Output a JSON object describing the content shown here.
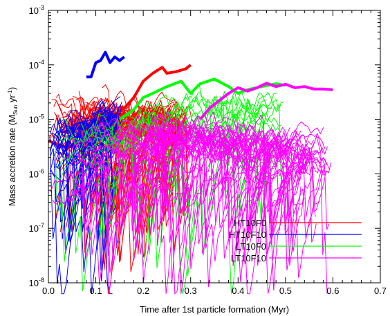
{
  "chart_data": {
    "type": "line",
    "xlabel": "Time after 1st particle formation (Myr)",
    "ylabel_main": "Mass accretion rate (M",
    "ylabel_sub": "Sun",
    "ylabel_mid": " yr",
    "ylabel_sup": "-1",
    "ylabel_end": ")",
    "xlim": [
      0.0,
      0.7
    ],
    "ylim": [
      1e-08,
      0.001
    ],
    "yscale": "log",
    "x_ticks": [
      {
        "v": 0.0,
        "label": "0.0"
      },
      {
        "v": 0.1,
        "label": "0.1"
      },
      {
        "v": 0.2,
        "label": "0.2"
      },
      {
        "v": 0.3,
        "label": "0.3"
      },
      {
        "v": 0.4,
        "label": "0.4"
      },
      {
        "v": 0.5,
        "label": "0.5"
      },
      {
        "v": 0.6,
        "label": "0.6"
      },
      {
        "v": 0.7,
        "label": "0.7"
      }
    ],
    "y_ticks": [
      {
        "exp": -8,
        "base": "10",
        "sup": "-8"
      },
      {
        "exp": -7,
        "base": "10",
        "sup": "-7"
      },
      {
        "exp": -6,
        "base": "10",
        "sup": "-6"
      },
      {
        "exp": -5,
        "base": "10",
        "sup": "-5"
      },
      {
        "exp": -4,
        "base": "10",
        "sup": "-4"
      },
      {
        "exp": -3,
        "base": "10",
        "sup": "-3"
      }
    ],
    "legend_placement": "bottom-right",
    "series": [
      {
        "name": "HT10F0",
        "color": "#ff0000",
        "x_range": [
          0.0,
          0.305
        ],
        "n_thin": 55,
        "seed": 11,
        "mean": [
          [
            0.0,
            1e-05
          ],
          [
            0.15,
            1e-05
          ],
          [
            0.3,
            1e-05
          ]
        ],
        "thick": [
          [
            0.0,
            4e-06
          ],
          [
            0.02,
            3.5e-06
          ],
          [
            0.04,
            3e-06
          ],
          [
            0.06,
            3.6e-06
          ],
          [
            0.08,
            4.5e-06
          ],
          [
            0.1,
            6e-06
          ],
          [
            0.12,
            8e-06
          ],
          [
            0.14,
            1.2e-05
          ],
          [
            0.16,
            1.6e-05
          ],
          [
            0.18,
            2.5e-05
          ],
          [
            0.2,
            5e-05
          ],
          [
            0.22,
            7e-05
          ],
          [
            0.24,
            9e-05
          ],
          [
            0.25,
            7e-05
          ],
          [
            0.27,
            7.5e-05
          ],
          [
            0.29,
            8.5e-05
          ],
          [
            0.3,
            0.0001
          ]
        ]
      },
      {
        "name": "HT10F10",
        "color": "#0000ff",
        "x_range": [
          0.0,
          0.16
        ],
        "n_thin": 45,
        "seed": 23,
        "mean": [
          [
            0.0,
            3e-06
          ],
          [
            0.08,
            8e-06
          ],
          [
            0.16,
            1.5e-05
          ]
        ],
        "thick": [
          [
            0.08,
            6e-05
          ],
          [
            0.09,
            6e-05
          ],
          [
            0.1,
            0.00011
          ],
          [
            0.11,
            0.00012
          ],
          [
            0.12,
            0.00017
          ],
          [
            0.13,
            0.00011
          ],
          [
            0.14,
            0.00014
          ],
          [
            0.15,
            0.00012
          ],
          [
            0.16,
            0.00014
          ]
        ]
      },
      {
        "name": "LT10F0",
        "color": "#00ff00",
        "x_range": [
          0.0,
          0.5
        ],
        "n_thin": 14,
        "seed": 37,
        "mean": [
          [
            0.0,
            2e-06
          ],
          [
            0.1,
            5e-06
          ],
          [
            0.2,
            8e-06
          ],
          [
            0.3,
            1.5e-05
          ],
          [
            0.5,
            2e-05
          ]
        ],
        "thick": [
          [
            0.15,
            1e-05
          ],
          [
            0.18,
            1.5e-05
          ],
          [
            0.2,
            2.5e-05
          ],
          [
            0.22,
            3e-05
          ],
          [
            0.25,
            4e-05
          ],
          [
            0.28,
            5e-05
          ],
          [
            0.3,
            3e-05
          ],
          [
            0.32,
            4.5e-05
          ],
          [
            0.35,
            5.5e-05
          ],
          [
            0.38,
            4e-05
          ],
          [
            0.4,
            3e-05
          ],
          [
            0.42,
            3.5e-05
          ],
          [
            0.45,
            4e-05
          ],
          [
            0.48,
            4.5e-05
          ],
          [
            0.5,
            4.2e-05
          ]
        ]
      },
      {
        "name": "LT10F10",
        "color": "#ff00ff",
        "x_range": [
          0.0,
          0.6
        ],
        "n_thin": 40,
        "seed": 53,
        "mean": [
          [
            0.0,
            5e-07
          ],
          [
            0.1,
            3e-06
          ],
          [
            0.2,
            5e-06
          ],
          [
            0.3,
            5e-06
          ],
          [
            0.45,
            3e-06
          ],
          [
            0.6,
            3e-06
          ]
        ],
        "thick": [
          [
            0.32,
            1e-05
          ],
          [
            0.34,
            1.6e-05
          ],
          [
            0.36,
            2.2e-05
          ],
          [
            0.38,
            3e-05
          ],
          [
            0.4,
            3.8e-05
          ],
          [
            0.42,
            3.3e-05
          ],
          [
            0.44,
            3.8e-05
          ],
          [
            0.46,
            4.6e-05
          ],
          [
            0.48,
            4e-05
          ],
          [
            0.5,
            4.4e-05
          ],
          [
            0.52,
            3.8e-05
          ],
          [
            0.54,
            4e-05
          ],
          [
            0.56,
            3.6e-05
          ],
          [
            0.58,
            3.6e-05
          ],
          [
            0.6,
            3.5e-05
          ]
        ]
      }
    ]
  }
}
